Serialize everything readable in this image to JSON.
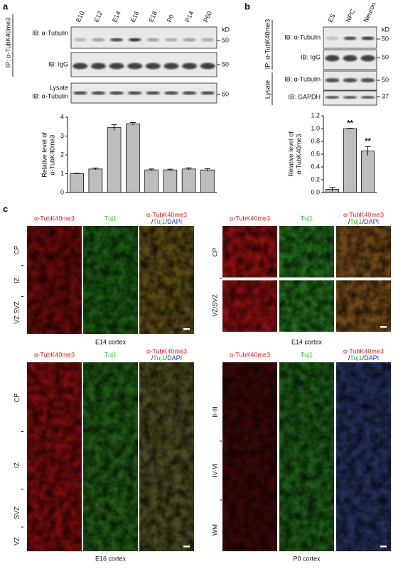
{
  "panel_labels": [
    "a",
    "b",
    "c"
  ],
  "panel_a": {
    "lanes": [
      "E10",
      "E12",
      "E14",
      "E16",
      "E18",
      "P0",
      "P14",
      "P60"
    ],
    "ip_label": "IP: α-TubK40me3",
    "rows": [
      "IB: α-Tubulin",
      "IB: IgG"
    ],
    "lysate_title": "Lysate",
    "lysate_row": "IB: α-Tubulin",
    "kd": "kD",
    "markers": [
      "50",
      "50",
      "50"
    ]
  },
  "panel_b": {
    "lanes": [
      "ES",
      "NPC",
      "Neuron"
    ],
    "ip_label": "IP: α-TubK40me3",
    "rows": [
      "IB: α-Tubulin",
      "IB: IgG"
    ],
    "lysate_title": "Lysate",
    "lysate_rows": [
      "IB: α-Tubulin",
      "IB: GAPDH"
    ],
    "kd": "kD",
    "markers": [
      "50",
      "50",
      "50",
      "37"
    ]
  },
  "chart_data": [
    {
      "type": "bar",
      "ylabel": [
        "Relative level of",
        "α-TubK40me3"
      ],
      "categories": [
        null,
        null,
        null,
        null,
        null,
        null,
        null,
        null
      ],
      "values": [
        1.0,
        1.25,
        3.45,
        3.65,
        1.2,
        1.2,
        1.25,
        1.2
      ],
      "errors": [
        0.02,
        0.05,
        0.15,
        0.07,
        0.05,
        0.04,
        0.06,
        0.07
      ],
      "color": "#bdbdbd",
      "ylim": [
        0,
        4
      ],
      "yticks": [
        0,
        1,
        2,
        3,
        4
      ]
    },
    {
      "type": "bar",
      "ylabel": [
        "Relative level of",
        "α-TubK40me3"
      ],
      "categories": [
        null,
        null,
        null
      ],
      "values": [
        0.05,
        1.0,
        0.65
      ],
      "errors": [
        0.03,
        0.005,
        0.07
      ],
      "color": "#bdbdbd",
      "ylim": [
        0,
        1.2
      ],
      "yticks": [
        {
          "value": 0,
          "label": "0.0"
        },
        0.2,
        0.4,
        0.6,
        0.8,
        {
          "value": 1,
          "label": "1.0"
        },
        1.2
      ],
      "annotations": [
        {
          "text": "**",
          "index": 1
        },
        {
          "text": "**",
          "index": 2
        }
      ]
    }
  ],
  "panel_c": {
    "groups": [
      {
        "headers": [
          "α-TubK40me3",
          "Tuj1",
          [
            "α-TubK40me3",
            "/",
            "Tuj1",
            "/",
            "DAPI"
          ]
        ],
        "rows": [
          "CP",
          "IZ",
          "VZ SVZ"
        ],
        "caption": "E14 cortex"
      },
      {
        "headers": [
          "α-TubK40me3",
          "Tuj1",
          [
            "α-TubK40me3",
            "/",
            "Tuj1",
            "/",
            "DAPI"
          ]
        ],
        "rows": [
          "CP",
          "VZ/SVZ"
        ],
        "caption": "E14 cortex"
      },
      {
        "headers": [
          "α-TubK40me3",
          "Tuj1",
          [
            "α-TubK40me3",
            "/",
            "Tuj1",
            "/",
            "DAPI"
          ]
        ],
        "rows": [
          "CP",
          "IZ",
          "SVZ",
          "VZ"
        ],
        "caption": "E16 cortex"
      },
      {
        "headers": [
          "α-TubK40me3",
          "Tuj1",
          [
            "α-TubK40me3",
            "/",
            "Tuj1",
            "/",
            "DAPI"
          ]
        ],
        "rows": [
          "II-III",
          "IV-VI",
          "WM"
        ],
        "caption": "P0 cortex"
      }
    ]
  }
}
